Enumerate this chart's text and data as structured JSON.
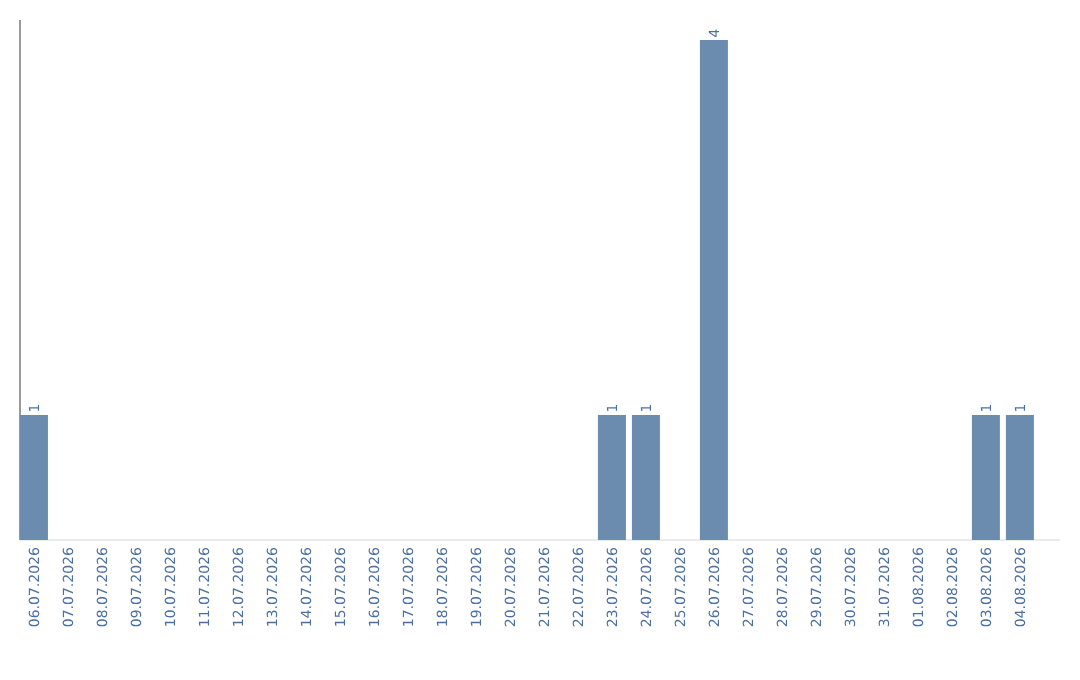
{
  "chart_data": {
    "type": "bar",
    "categories": [
      "06.07.2026",
      "07.07.2026",
      "08.07.2026",
      "09.07.2026",
      "10.07.2026",
      "11.07.2026",
      "12.07.2026",
      "13.07.2026",
      "14.07.2026",
      "15.07.2026",
      "16.07.2026",
      "17.07.2026",
      "18.07.2026",
      "19.07.2026",
      "20.07.2026",
      "21.07.2026",
      "22.07.2026",
      "23.07.2026",
      "24.07.2026",
      "25.07.2026",
      "26.07.2026",
      "27.07.2026",
      "28.07.2026",
      "29.07.2026",
      "30.07.2026",
      "31.07.2026",
      "01.08.2026",
      "02.08.2026",
      "03.08.2026",
      "04.08.2026"
    ],
    "values": [
      1,
      0,
      0,
      0,
      0,
      0,
      0,
      0,
      0,
      0,
      0,
      0,
      0,
      0,
      0,
      0,
      0,
      1,
      1,
      0,
      4,
      0,
      0,
      0,
      0,
      0,
      0,
      0,
      1,
      1
    ],
    "value_labels": [
      "1",
      null,
      null,
      null,
      null,
      null,
      null,
      null,
      null,
      null,
      null,
      null,
      null,
      null,
      null,
      null,
      null,
      "1",
      "1",
      null,
      "4",
      null,
      null,
      null,
      null,
      null,
      null,
      null,
      "1",
      "1"
    ],
    "color": "#6b8cae"
  }
}
